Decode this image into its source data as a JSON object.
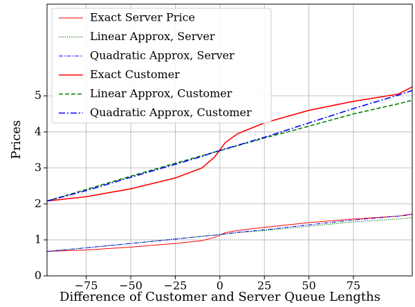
{
  "chart_data": {
    "type": "line",
    "xlabel": "Difference of Customer and Server Queue Lengths",
    "ylabel": "Prices",
    "x": [
      -97,
      -75,
      -50,
      -25,
      -10,
      -3,
      0,
      3,
      10,
      25,
      50,
      75,
      100,
      108
    ],
    "series": [
      {
        "name": "Exact Server Price",
        "color": "#ff0000",
        "width": 1,
        "dash": "none",
        "values": [
          0.68,
          0.72,
          0.8,
          0.9,
          0.98,
          1.07,
          1.13,
          1.2,
          1.26,
          1.35,
          1.48,
          1.58,
          1.66,
          1.72
        ]
      },
      {
        "name": "Linear Approx, Server",
        "color": "#008000",
        "width": 1,
        "dash": "1.5 1.5",
        "values": [
          0.68,
          0.78,
          0.9,
          1.03,
          1.1,
          1.13,
          1.15,
          1.16,
          1.2,
          1.26,
          1.38,
          1.5,
          1.58,
          1.62
        ]
      },
      {
        "name": "Quadratic Approx, Server",
        "color": "#0000ff",
        "width": 1,
        "dash": "6 2 1.5 2",
        "values": [
          0.68,
          0.78,
          0.9,
          1.02,
          1.1,
          1.13,
          1.15,
          1.17,
          1.21,
          1.28,
          1.42,
          1.55,
          1.66,
          1.7
        ]
      },
      {
        "name": "Exact Customer",
        "color": "#ff0000",
        "width": 1.6,
        "dash": "none",
        "values": [
          2.08,
          2.2,
          2.42,
          2.72,
          3.0,
          3.3,
          3.5,
          3.7,
          3.95,
          4.25,
          4.6,
          4.85,
          5.05,
          5.25
        ]
      },
      {
        "name": "Linear Approx, Customer",
        "color": "#008000",
        "width": 1.6,
        "dash": "6 3",
        "values": [
          2.08,
          2.4,
          2.77,
          3.13,
          3.34,
          3.44,
          3.48,
          3.52,
          3.62,
          3.83,
          4.16,
          4.5,
          4.78,
          4.88
        ]
      },
      {
        "name": "Quadratic Approx, Customer",
        "color": "#0000ff",
        "width": 1.6,
        "dash": "9 3 2 3",
        "values": [
          2.08,
          2.37,
          2.74,
          3.1,
          3.32,
          3.44,
          3.48,
          3.53,
          3.63,
          3.85,
          4.25,
          4.65,
          5.02,
          5.15
        ]
      }
    ],
    "xlim": [
      -97,
      108
    ],
    "ylim": [
      0,
      7.55
    ],
    "xticks": [
      {
        "value": -75,
        "label": "−75"
      },
      {
        "value": -50,
        "label": "−50"
      },
      {
        "value": -25,
        "label": "−25"
      },
      0,
      25,
      50,
      75
    ],
    "yticks": [
      0,
      1,
      2,
      3,
      4,
      5
    ],
    "grid": true,
    "legend": "upper left"
  }
}
